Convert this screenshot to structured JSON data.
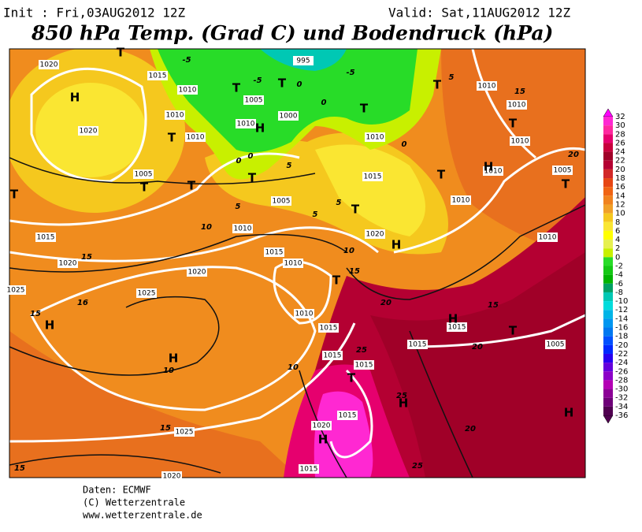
{
  "header": {
    "init": "Init : Fri,03AUG2012 12Z",
    "valid": "Valid: Sat,11AUG2012 12Z",
    "title": "850 hPa Temp. (Grad C) und Bodendruck (hPa)"
  },
  "map_labels": {
    "isobars": [
      "1020",
      "1015",
      "1010",
      "1010",
      "1010",
      "1005",
      "1010",
      "1000",
      "995",
      "1020",
      "1005",
      "1005",
      "1010",
      "1015",
      "1010",
      "1020",
      "1015",
      "1020",
      "1025",
      "1025",
      "1010",
      "1015",
      "1015",
      "1015",
      "1015",
      "1015",
      "1005",
      "1010",
      "1010",
      "1010",
      "1005",
      "1010",
      "1010",
      "1010",
      "1015",
      "1010",
      "1020",
      "1015",
      "1020",
      "1015",
      "1025",
      "1020"
    ],
    "highs": [
      "H",
      "H",
      "H",
      "H",
      "H",
      "H",
      "H",
      "H",
      "H",
      "H"
    ],
    "lows": [
      "T",
      "T",
      "T",
      "T",
      "T",
      "T",
      "T",
      "T",
      "T",
      "T",
      "T",
      "T",
      "T",
      "T",
      "T",
      "T",
      "T"
    ],
    "isotherms": [
      "-5",
      "-5",
      "-5",
      "0",
      "0",
      "0",
      "0",
      "0",
      "5",
      "5",
      "5",
      "5",
      "5",
      "10",
      "10",
      "10",
      "10",
      "15",
      "15",
      "15",
      "15",
      "15",
      "15",
      "15",
      "16",
      "20",
      "20",
      "20",
      "20",
      "25",
      "25",
      "25"
    ]
  },
  "colorbar": {
    "values": [
      32,
      30,
      28,
      26,
      24,
      22,
      20,
      18,
      16,
      14,
      12,
      10,
      8,
      6,
      4,
      2,
      0,
      -2,
      -4,
      -6,
      -8,
      -10,
      -12,
      -14,
      -16,
      -18,
      -20,
      -22,
      -24,
      -26,
      -28,
      -30,
      -32,
      -34,
      -36
    ],
    "colors": [
      "#ff00ff",
      "#ff28d2",
      "#ff28a0",
      "#e6006e",
      "#c8003c",
      "#a00028",
      "#b40032",
      "#d22828",
      "#e64614",
      "#f06414",
      "#f0821e",
      "#f0a028",
      "#f5c81e",
      "#fae632",
      "#ffff00",
      "#e6f050",
      "#c8f000",
      "#28dc28",
      "#14c814",
      "#00b400",
      "#00a064",
      "#00c8b4",
      "#00dcdc",
      "#00b4e6",
      "#0096f0",
      "#0078f0",
      "#0050ff",
      "#0028ff",
      "#2800f0",
      "#6400dc",
      "#8c00c8",
      "#b400b4",
      "#8c0096",
      "#6e0078",
      "#500050"
    ]
  },
  "footer": {
    "source": "Daten: ECMWF",
    "copyright": "(C) Wetterzentrale",
    "url": "www.wetterzentrale.de"
  }
}
